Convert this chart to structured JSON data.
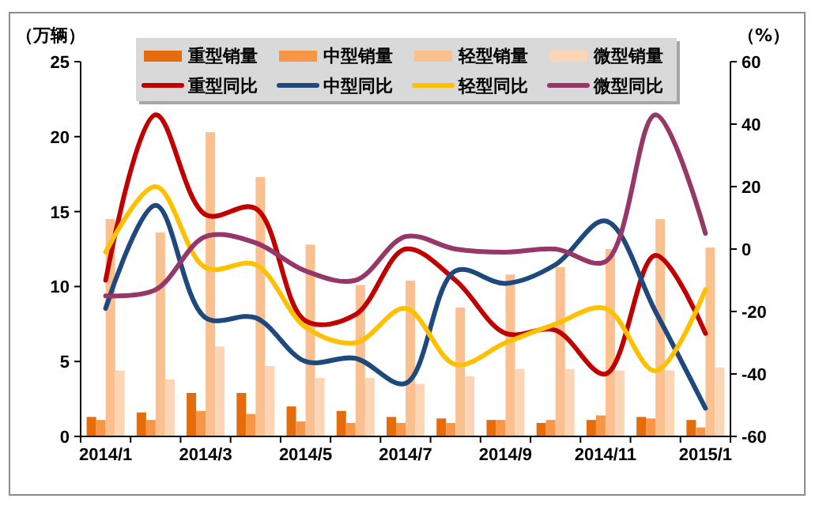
{
  "chart_data": {
    "type": "bar",
    "ylabel": "（万辆）",
    "y2label": "（%）",
    "categories": [
      "2014/1",
      null,
      "2014/3",
      null,
      "2014/5",
      null,
      "2014/7",
      null,
      "2014/9",
      null,
      "2014/11",
      null,
      "2015/1"
    ],
    "ylim": [
      0,
      25
    ],
    "yticks": [
      0,
      5,
      10,
      15,
      20,
      25
    ],
    "y2lim": [
      -60,
      60
    ],
    "y2ticks": [
      -60,
      -40,
      -20,
      0,
      20,
      40,
      60
    ],
    "legend": "top",
    "grid": false,
    "series": [
      {
        "name": "重型销量",
        "color": "#e46c0a",
        "values": [
          1.3,
          1.6,
          2.9,
          2.9,
          2.0,
          1.7,
          1.3,
          1.2,
          1.1,
          0.9,
          1.1,
          1.3,
          1.1
        ]
      },
      {
        "name": "中型销量",
        "color": "#f79646",
        "values": [
          1.1,
          1.1,
          1.7,
          1.5,
          1.0,
          0.9,
          0.9,
          0.9,
          1.1,
          1.1,
          1.4,
          1.2,
          0.6
        ]
      },
      {
        "name": "轻型销量",
        "color": "#fac090",
        "values": [
          14.5,
          13.6,
          20.3,
          17.3,
          12.8,
          10.1,
          10.4,
          8.6,
          10.8,
          11.3,
          12.5,
          14.5,
          12.6
        ]
      },
      {
        "name": "微型销量",
        "color": "#fcd5b5",
        "values": [
          4.4,
          3.8,
          6.0,
          4.7,
          3.9,
          3.9,
          3.5,
          4.0,
          4.5,
          4.5,
          4.4,
          4.4,
          4.6
        ]
      },
      {
        "name": "重型同比",
        "type": "line",
        "axis": "y2",
        "color": "#c00000",
        "values": [
          -10,
          43,
          11,
          13,
          -23,
          -21,
          0,
          -10,
          -27,
          -26,
          -40,
          -2,
          -27
        ]
      },
      {
        "name": "中型同比",
        "type": "line",
        "axis": "y2",
        "color": "#1f497d",
        "values": [
          -19,
          14,
          -22,
          -22,
          -36,
          -35,
          -43,
          -7,
          -11,
          -5,
          9,
          -20,
          -51
        ]
      },
      {
        "name": "轻型同比",
        "type": "line",
        "axis": "y2",
        "color": "#ffc000",
        "values": [
          -1,
          20,
          -6,
          -5,
          -25,
          -30,
          -19,
          -37,
          -30,
          -24,
          -19,
          -39,
          -13
        ]
      },
      {
        "name": "微型同比",
        "type": "line",
        "axis": "y2",
        "color": "#953768",
        "values": [
          -15,
          -13,
          4,
          2,
          -7,
          -10,
          4,
          0,
          -1,
          0,
          -4,
          43,
          5
        ]
      }
    ]
  }
}
